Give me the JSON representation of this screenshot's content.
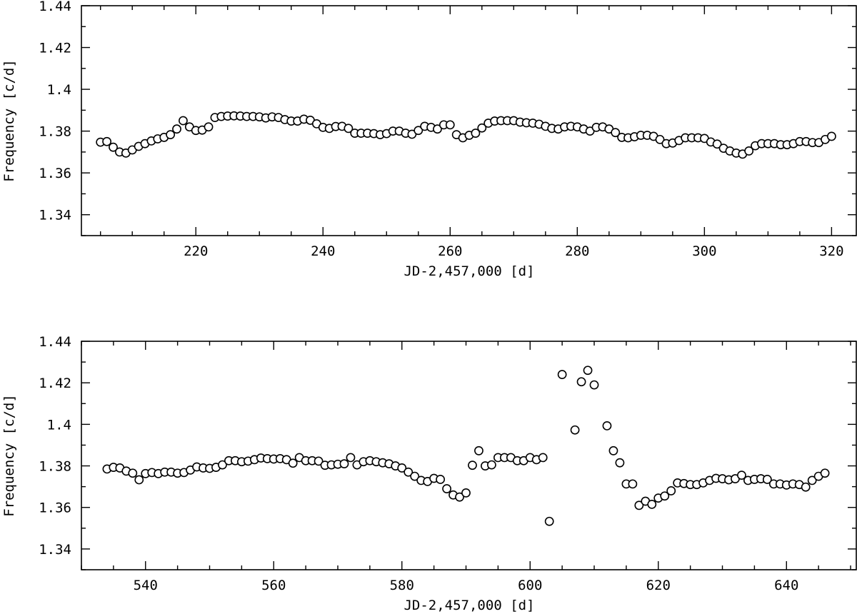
{
  "chart_data": [
    {
      "type": "scatter",
      "xlabel": "JD-2,457,000 [d]",
      "ylabel": "Frequency [c/d]",
      "xlim": [
        202,
        324
      ],
      "ylim": [
        1.33,
        1.44
      ],
      "xticks": [
        220,
        240,
        260,
        280,
        300,
        320
      ],
      "yticks": [
        1.34,
        1.36,
        1.38,
        1.4,
        1.42,
        1.44
      ],
      "yticklabels": [
        "1.34",
        "1.36",
        "1.38",
        "1.4",
        "1.42",
        "1.44"
      ],
      "marker": "open-circle",
      "grid": false,
      "series": [
        {
          "points": [
            [
              205.0,
              1.3747
            ],
            [
              206.0,
              1.375
            ],
            [
              207.0,
              1.3723
            ],
            [
              208.0,
              1.37
            ],
            [
              209.0,
              1.3695
            ],
            [
              210.0,
              1.371
            ],
            [
              211.0,
              1.3727
            ],
            [
              212.0,
              1.374
            ],
            [
              213.0,
              1.3753
            ],
            [
              214.0,
              1.3763
            ],
            [
              215.0,
              1.377
            ],
            [
              216.0,
              1.3783
            ],
            [
              217.0,
              1.381
            ],
            [
              218.0,
              1.385
            ],
            [
              219.0,
              1.382
            ],
            [
              220.0,
              1.3803
            ],
            [
              221.0,
              1.3805
            ],
            [
              222.0,
              1.382
            ],
            [
              223.0,
              1.3865
            ],
            [
              224.0,
              1.387
            ],
            [
              225.0,
              1.3872
            ],
            [
              226.0,
              1.3873
            ],
            [
              227.0,
              1.3872
            ],
            [
              228.0,
              1.387
            ],
            [
              229.0,
              1.387
            ],
            [
              230.0,
              1.3868
            ],
            [
              231.0,
              1.3863
            ],
            [
              232.0,
              1.3868
            ],
            [
              233.0,
              1.3865
            ],
            [
              234.0,
              1.3855
            ],
            [
              235.0,
              1.3848
            ],
            [
              236.0,
              1.3848
            ],
            [
              237.0,
              1.3857
            ],
            [
              238.0,
              1.3852
            ],
            [
              239.0,
              1.3835
            ],
            [
              240.0,
              1.3818
            ],
            [
              241.0,
              1.3813
            ],
            [
              242.0,
              1.3822
            ],
            [
              243.0,
              1.3823
            ],
            [
              244.0,
              1.3813
            ],
            [
              245.0,
              1.379
            ],
            [
              246.0,
              1.379
            ],
            [
              247.0,
              1.379
            ],
            [
              248.0,
              1.3788
            ],
            [
              249.0,
              1.3783
            ],
            [
              250.0,
              1.3788
            ],
            [
              251.0,
              1.38
            ],
            [
              252.0,
              1.38
            ],
            [
              253.0,
              1.379
            ],
            [
              254.0,
              1.3785
            ],
            [
              255.0,
              1.3803
            ],
            [
              256.0,
              1.3823
            ],
            [
              257.0,
              1.3818
            ],
            [
              258.0,
              1.381
            ],
            [
              259.0,
              1.383
            ],
            [
              260.0,
              1.383
            ],
            [
              261.0,
              1.3783
            ],
            [
              262.0,
              1.3768
            ],
            [
              263.0,
              1.378
            ],
            [
              264.0,
              1.379
            ],
            [
              265.0,
              1.3815
            ],
            [
              266.0,
              1.3838
            ],
            [
              267.0,
              1.3848
            ],
            [
              268.0,
              1.385
            ],
            [
              269.0,
              1.385
            ],
            [
              270.0,
              1.385
            ],
            [
              271.0,
              1.3843
            ],
            [
              272.0,
              1.384
            ],
            [
              273.0,
              1.3838
            ],
            [
              274.0,
              1.3833
            ],
            [
              275.0,
              1.3823
            ],
            [
              276.0,
              1.3813
            ],
            [
              277.0,
              1.381
            ],
            [
              278.0,
              1.382
            ],
            [
              279.0,
              1.3823
            ],
            [
              280.0,
              1.382
            ],
            [
              281.0,
              1.381
            ],
            [
              282.0,
              1.38
            ],
            [
              283.0,
              1.3818
            ],
            [
              284.0,
              1.382
            ],
            [
              285.0,
              1.381
            ],
            [
              286.0,
              1.3793
            ],
            [
              287.0,
              1.377
            ],
            [
              288.0,
              1.3768
            ],
            [
              289.0,
              1.3773
            ],
            [
              290.0,
              1.378
            ],
            [
              291.0,
              1.378
            ],
            [
              292.0,
              1.3775
            ],
            [
              293.0,
              1.376
            ],
            [
              294.0,
              1.374
            ],
            [
              295.0,
              1.3743
            ],
            [
              296.0,
              1.3755
            ],
            [
              297.0,
              1.3768
            ],
            [
              298.0,
              1.3768
            ],
            [
              299.0,
              1.3768
            ],
            [
              300.0,
              1.3765
            ],
            [
              301.0,
              1.3748
            ],
            [
              302.0,
              1.3738
            ],
            [
              303.0,
              1.3718
            ],
            [
              304.0,
              1.3705
            ],
            [
              305.0,
              1.3695
            ],
            [
              306.0,
              1.369
            ],
            [
              307.0,
              1.3705
            ],
            [
              308.0,
              1.373
            ],
            [
              309.0,
              1.374
            ],
            [
              310.0,
              1.374
            ],
            [
              311.0,
              1.374
            ],
            [
              312.0,
              1.3735
            ],
            [
              313.0,
              1.3735
            ],
            [
              314.0,
              1.374
            ],
            [
              315.0,
              1.375
            ],
            [
              316.0,
              1.375
            ],
            [
              317.0,
              1.3745
            ],
            [
              318.0,
              1.3745
            ],
            [
              319.0,
              1.376
            ],
            [
              320.0,
              1.3775
            ]
          ]
        }
      ]
    },
    {
      "type": "scatter",
      "xlabel": "JD-2,457,000 [d]",
      "ylabel": "Frequency [c/d]",
      "xlim": [
        530,
        651
      ],
      "ylim": [
        1.33,
        1.44
      ],
      "xticks": [
        540,
        560,
        580,
        600,
        620,
        640
      ],
      "yticks": [
        1.34,
        1.36,
        1.38,
        1.4,
        1.42,
        1.44
      ],
      "yticklabels": [
        "1.34",
        "1.36",
        "1.38",
        "1.4",
        "1.42",
        "1.44"
      ],
      "marker": "open-circle",
      "grid": false,
      "series": [
        {
          "points": [
            [
              534.0,
              1.3785
            ],
            [
              535.0,
              1.3793
            ],
            [
              536.0,
              1.379
            ],
            [
              537.0,
              1.3775
            ],
            [
              538.0,
              1.3765
            ],
            [
              539.0,
              1.3733
            ],
            [
              540.0,
              1.3763
            ],
            [
              541.0,
              1.3768
            ],
            [
              542.0,
              1.3763
            ],
            [
              543.0,
              1.377
            ],
            [
              544.0,
              1.377
            ],
            [
              545.0,
              1.3765
            ],
            [
              546.0,
              1.3768
            ],
            [
              547.0,
              1.378
            ],
            [
              548.0,
              1.3795
            ],
            [
              549.0,
              1.379
            ],
            [
              550.0,
              1.3788
            ],
            [
              551.0,
              1.3793
            ],
            [
              552.0,
              1.3805
            ],
            [
              553.0,
              1.3825
            ],
            [
              554.0,
              1.3825
            ],
            [
              555.0,
              1.382
            ],
            [
              556.0,
              1.3823
            ],
            [
              557.0,
              1.383
            ],
            [
              558.0,
              1.3838
            ],
            [
              559.0,
              1.3835
            ],
            [
              560.0,
              1.3833
            ],
            [
              561.0,
              1.3835
            ],
            [
              562.0,
              1.383
            ],
            [
              563.0,
              1.3813
            ],
            [
              564.0,
              1.384
            ],
            [
              565.0,
              1.3825
            ],
            [
              566.0,
              1.3825
            ],
            [
              567.0,
              1.3823
            ],
            [
              568.0,
              1.3803
            ],
            [
              569.0,
              1.3805
            ],
            [
              570.0,
              1.3808
            ],
            [
              571.0,
              1.381
            ],
            [
              572.0,
              1.384
            ],
            [
              573.0,
              1.3805
            ],
            [
              574.0,
              1.382
            ],
            [
              575.0,
              1.3825
            ],
            [
              576.0,
              1.382
            ],
            [
              577.0,
              1.3815
            ],
            [
              578.0,
              1.381
            ],
            [
              579.0,
              1.38
            ],
            [
              580.0,
              1.379
            ],
            [
              581.0,
              1.377
            ],
            [
              582.0,
              1.375
            ],
            [
              583.0,
              1.373
            ],
            [
              584.0,
              1.3725
            ],
            [
              585.0,
              1.374
            ],
            [
              586.0,
              1.3735
            ],
            [
              587.0,
              1.369
            ],
            [
              588.0,
              1.366
            ],
            [
              589.0,
              1.365
            ],
            [
              590.0,
              1.367
            ],
            [
              591.0,
              1.3803
            ],
            [
              592.0,
              1.3873
            ],
            [
              593.0,
              1.38
            ],
            [
              594.0,
              1.3805
            ],
            [
              595.0,
              1.384
            ],
            [
              596.0,
              1.384
            ],
            [
              597.0,
              1.384
            ],
            [
              598.0,
              1.3825
            ],
            [
              599.0,
              1.3825
            ],
            [
              600.0,
              1.384
            ],
            [
              601.0,
              1.383
            ],
            [
              602.0,
              1.384
            ],
            [
              603.0,
              1.3533
            ],
            [
              605.0,
              1.424
            ],
            [
              607.0,
              1.3973
            ],
            [
              608.0,
              1.4205
            ],
            [
              609.0,
              1.426
            ],
            [
              610.0,
              1.419
            ],
            [
              612.0,
              1.3993
            ],
            [
              613.0,
              1.3873
            ],
            [
              614.0,
              1.3815
            ],
            [
              615.0,
              1.3713
            ],
            [
              616.0,
              1.3713
            ],
            [
              617.0,
              1.361
            ],
            [
              618.0,
              1.363
            ],
            [
              619.0,
              1.3615
            ],
            [
              620.0,
              1.3645
            ],
            [
              621.0,
              1.3655
            ],
            [
              622.0,
              1.368
            ],
            [
              623.0,
              1.3718
            ],
            [
              624.0,
              1.3715
            ],
            [
              625.0,
              1.371
            ],
            [
              626.0,
              1.371
            ],
            [
              627.0,
              1.3718
            ],
            [
              628.0,
              1.373
            ],
            [
              629.0,
              1.374
            ],
            [
              630.0,
              1.3738
            ],
            [
              631.0,
              1.3733
            ],
            [
              632.0,
              1.3738
            ],
            [
              633.0,
              1.3755
            ],
            [
              634.0,
              1.373
            ],
            [
              635.0,
              1.3735
            ],
            [
              636.0,
              1.3738
            ],
            [
              637.0,
              1.3735
            ],
            [
              638.0,
              1.3713
            ],
            [
              639.0,
              1.3713
            ],
            [
              640.0,
              1.3708
            ],
            [
              641.0,
              1.3713
            ],
            [
              642.0,
              1.371
            ],
            [
              643.0,
              1.3698
            ],
            [
              644.0,
              1.373
            ],
            [
              645.0,
              1.375
            ],
            [
              646.0,
              1.3765
            ]
          ]
        }
      ]
    }
  ]
}
